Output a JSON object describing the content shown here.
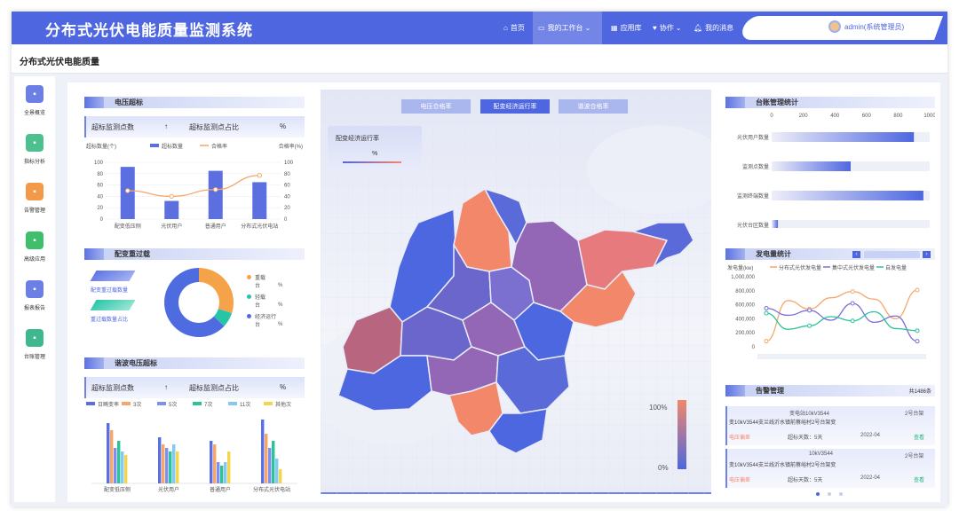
{
  "header": {
    "title": "分布式光伏电能质量监测系统",
    "nav": [
      {
        "label": "首页",
        "icon": "home-icon"
      },
      {
        "label": "我的工作台",
        "icon": "workbench-icon"
      },
      {
        "label": "应用库",
        "icon": "grid-icon"
      },
      {
        "label": "协作",
        "icon": "handshake-icon"
      },
      {
        "label": "我的消息",
        "icon": "bell-icon"
      }
    ],
    "user": "admin(系统管理员)"
  },
  "page_title": "分布式光伏电能质量",
  "sidebar": [
    {
      "label": "全景概览",
      "icon": "overview-icon",
      "color": "#6b7fe6"
    },
    {
      "label": "指标分析",
      "icon": "analysis-icon",
      "color": "#4cc08f"
    },
    {
      "label": "告警管理",
      "icon": "alarm-icon",
      "color": "#f39a4a"
    },
    {
      "label": "高级应用",
      "icon": "apps-icon",
      "color": "#3fbf6b"
    },
    {
      "label": "报表报告",
      "icon": "report-icon",
      "color": "#6b7fe6"
    },
    {
      "label": "台账管理",
      "icon": "ledger-icon",
      "color": "#3db88f"
    }
  ],
  "voltage": {
    "title": "电压超标",
    "kpi_left": "超标监测点数",
    "kpi_arrow": "↑",
    "kpi_right": "超标监测点占比",
    "kpi_unit": "%",
    "ylabel_left": "超标数量(个)",
    "ylabel_right": "合格率(%)",
    "legend_bar": "超标数量",
    "legend_line": "合格率",
    "chart_data": {
      "type": "bar",
      "categories": [
        "配变低压侧",
        "光伏用户",
        "普通用户",
        "分布式光伏电站"
      ],
      "series": [
        {
          "name": "超标数量",
          "values": [
            92,
            32,
            85,
            65
          ]
        },
        {
          "name": "合格率",
          "values": [
            50,
            40,
            52,
            77
          ]
        }
      ],
      "ylim": [
        0,
        100
      ],
      "yticks": [
        0,
        20,
        40,
        60,
        80,
        100
      ]
    }
  },
  "overload": {
    "title": "配变重过载",
    "left_labels": [
      "配变重过载数量",
      "重过载数量占比"
    ],
    "legend": [
      {
        "label": "重载",
        "sub": "台",
        "unit": "%",
        "color": "#f5a34a"
      },
      {
        "label": "轻载",
        "sub": "台",
        "unit": "%",
        "color": "#27c5a8"
      },
      {
        "label": "经济运行",
        "sub": "台",
        "unit": "%",
        "color": "#4f6be0"
      }
    ],
    "chart_data": {
      "type": "pie",
      "categories": [
        "重载",
        "轻载",
        "经济运行"
      ],
      "values": [
        30,
        7,
        63
      ]
    }
  },
  "harmonic": {
    "title": "谐波电压超标",
    "kpi_left": "超标监测点数",
    "kpi_arrow": "↑",
    "kpi_right": "超标监测点占比",
    "kpi_unit": "%",
    "legend": [
      "日畸变率",
      "3次",
      "5次",
      "7次",
      "11次",
      "其他次"
    ],
    "colors": [
      "#5b6fe0",
      "#f5a66a",
      "#7f8ff0",
      "#2cc39a",
      "#85c8f2",
      "#f5d64a"
    ],
    "chart_data": {
      "type": "bar",
      "categories": [
        "配变低压侧",
        "光伏用户",
        "普通用户",
        "分布式光伏电站"
      ],
      "series": [
        {
          "name": "日畸变率",
          "values": [
            85,
            65,
            60,
            90
          ]
        },
        {
          "name": "3次",
          "values": [
            75,
            55,
            55,
            70
          ]
        },
        {
          "name": "5次",
          "values": [
            50,
            50,
            30,
            50
          ]
        },
        {
          "name": "7次",
          "values": [
            60,
            45,
            25,
            60
          ]
        },
        {
          "name": "11次",
          "values": [
            45,
            55,
            30,
            35
          ]
        },
        {
          "name": "其他次",
          "values": [
            40,
            45,
            45,
            20
          ]
        }
      ],
      "ylim": [
        0,
        100
      ]
    }
  },
  "map": {
    "tabs": [
      "电压合格率",
      "配变经济运行率",
      "谐波合格率"
    ],
    "active_tab": 1,
    "info_title": "配变经济运行率",
    "info_value": "%",
    "scale_max": "100%",
    "scale_min": "0%"
  },
  "ledger": {
    "title": "台账管理统计",
    "chart_data": {
      "type": "bar",
      "categories": [
        "光伏用户数量",
        "监测点数量",
        "监测终端数量",
        "光伏台区数量"
      ],
      "values": [
        900,
        500,
        960,
        40
      ],
      "xlim": [
        0,
        1000
      ],
      "xticks": [
        0,
        200,
        400,
        600,
        800,
        1000
      ]
    }
  },
  "generation": {
    "title": "发电量统计",
    "ylabel": "发电量(kw)",
    "legend": [
      "分布式光伏发电量",
      "集中式光伏发电量",
      "自发电量"
    ],
    "colors": [
      "#f5a66a",
      "#7b6fd6",
      "#2cc39a"
    ],
    "chart_data": {
      "type": "line",
      "x": [
        0,
        1,
        2,
        3,
        4,
        5,
        6,
        7
      ],
      "series": [
        {
          "name": "分布式光伏发电量",
          "values": [
            80000,
            660000,
            540000,
            700000,
            790000,
            680000,
            400000,
            810000
          ]
        },
        {
          "name": "集中式光伏发电量",
          "values": [
            550000,
            450000,
            520000,
            380000,
            620000,
            350000,
            440000,
            80000
          ]
        },
        {
          "name": "自发电量",
          "values": [
            480000,
            250000,
            300000,
            430000,
            370000,
            500000,
            260000,
            230000
          ]
        }
      ],
      "ylim": [
        0,
        1000000
      ],
      "yticks": [
        0,
        200000,
        400000,
        600000,
        800000,
        1000000
      ],
      "ytick_labels": [
        "0",
        "200,000",
        "400,000",
        "600,000",
        "800,000",
        "1,000,000"
      ]
    }
  },
  "alarms": {
    "title": "告警管理",
    "total": "共1486条",
    "items": [
      {
        "station": "变电站10kV3544",
        "line": "变10kV3544支兰线沂水镇前蔡峪村2号台架变",
        "tag": "2号台架",
        "type": "电压偏差",
        "days": "超标天数：5天",
        "date": "2022-04",
        "action": "查看"
      },
      {
        "station": "10kV3544",
        "line": "变10kV3544支兰线沂水镇前蔡峪村2号台架变",
        "tag": "2号台架",
        "type": "电压偏差",
        "days": "超标天数：5天",
        "date": "2022-04",
        "action": "查看"
      }
    ]
  }
}
